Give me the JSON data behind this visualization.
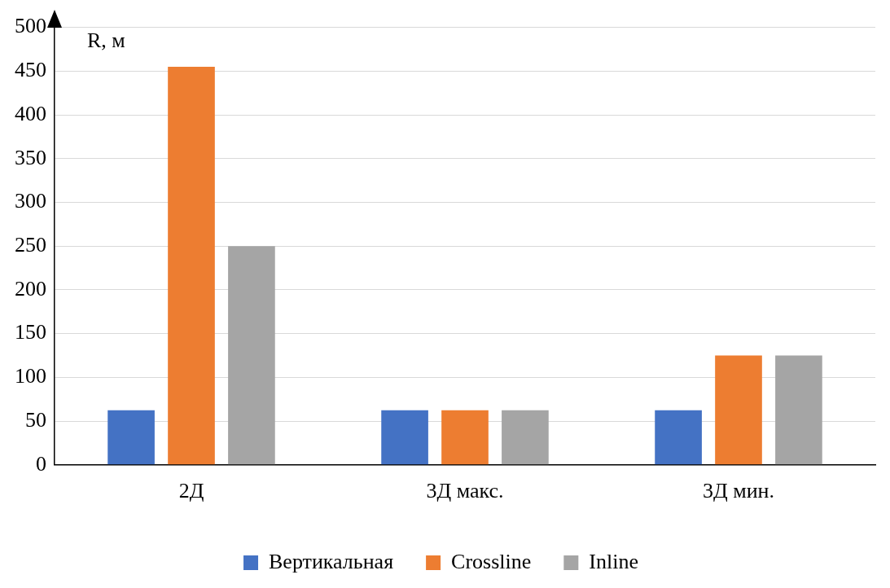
{
  "chart_data": {
    "type": "bar",
    "ylabel": "R, м",
    "categories": [
      "2Д",
      "3Д макс.",
      "3Д мин."
    ],
    "series": [
      {
        "name": "Вертикальная",
        "color": "#4472c4",
        "values": [
          62.5,
          62.5,
          62.5
        ]
      },
      {
        "name": "Crossline",
        "color": "#ed7d31",
        "values": [
          455,
          62.5,
          125
        ]
      },
      {
        "name": "Inline",
        "color": "#a5a5a5",
        "values": [
          250,
          62.5,
          125
        ]
      }
    ],
    "ylim": [
      0,
      500
    ],
    "yticks": [
      0,
      50,
      100,
      150,
      200,
      250,
      300,
      350,
      400,
      450,
      500
    ],
    "grid": "y",
    "legend": "bottom"
  }
}
